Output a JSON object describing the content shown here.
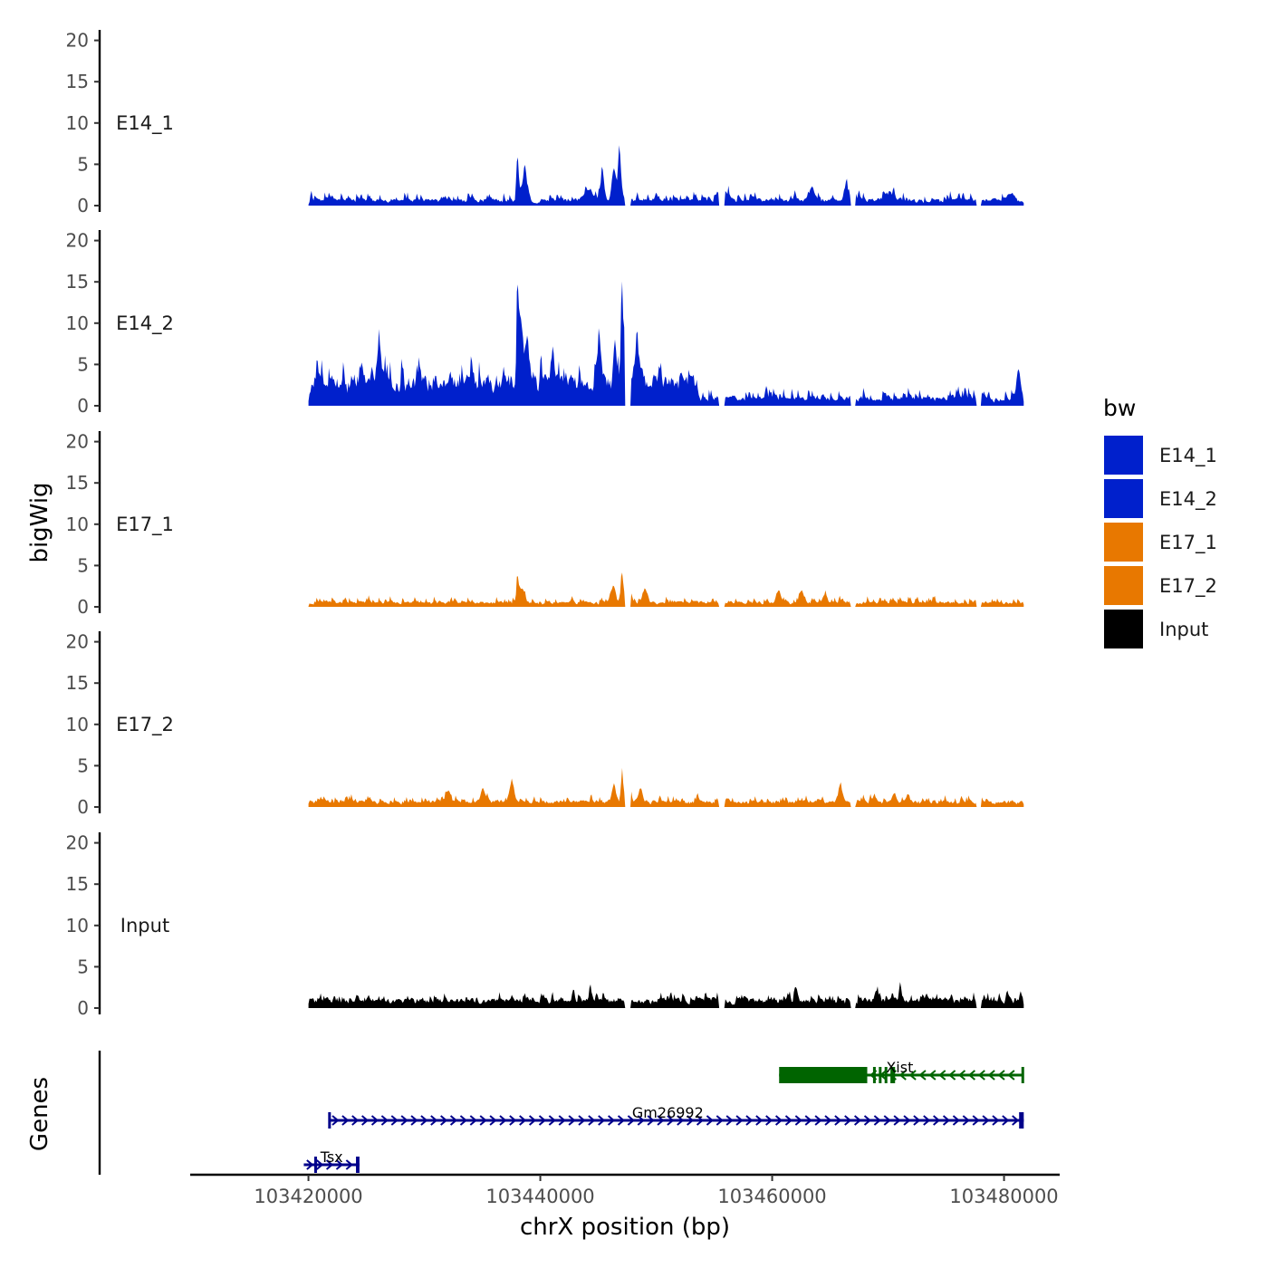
{
  "chart_data": {
    "type": "area",
    "title": "",
    "xlabel": "chrX position (bp)",
    "ylabel": "bigWig",
    "genes_label": "Genes",
    "xlim": [
      103409800,
      103484800
    ],
    "ylim": [
      0,
      21
    ],
    "x_ticks": [
      103420000,
      103440000,
      103460000,
      103480000
    ],
    "x_tick_labels": [
      "103420000",
      "103440000",
      "103460000",
      "103480000"
    ],
    "y_ticks": [
      0,
      5,
      10,
      15,
      20
    ],
    "y_tick_labels": [
      "0",
      "5",
      "10",
      "15",
      "20"
    ],
    "data_x_range": [
      103420000,
      103481700
    ],
    "gaps": [
      [
        103447300,
        103447800
      ],
      [
        103455400,
        103455900
      ],
      [
        103466800,
        103467200
      ],
      [
        103477600,
        103478000
      ]
    ],
    "legend": {
      "title": "bw",
      "entries": [
        {
          "name": "E14_1",
          "color": "#0020CC"
        },
        {
          "name": "E14_2",
          "color": "#0020CC"
        },
        {
          "name": "E17_1",
          "color": "#E87800"
        },
        {
          "name": "E17_2",
          "color": "#E87800"
        },
        {
          "name": "Input",
          "color": "#000000"
        }
      ]
    },
    "series": [
      {
        "name": "E14_1",
        "color": "#0020CC",
        "baseline": 0.6,
        "noise": 1.3,
        "seed": 11,
        "peaks": [
          [
            103438000,
            7.8,
            110
          ],
          [
            103438600,
            4.5,
            220
          ],
          [
            103445300,
            5.0,
            180
          ],
          [
            103446800,
            7.7,
            150
          ],
          [
            103446300,
            5.5,
            220
          ],
          [
            103444000,
            1.5,
            400
          ],
          [
            103456000,
            1.2,
            300
          ],
          [
            103463400,
            2.0,
            250
          ],
          [
            103466300,
            2.3,
            200
          ],
          [
            103470000,
            1.0,
            350
          ],
          [
            103480500,
            1.0,
            300
          ]
        ]
      },
      {
        "name": "E14_2",
        "color": "#0020CC",
        "baseline": 3.0,
        "noise": 3.6,
        "seed": 23,
        "decay_after": 103453500,
        "post_baseline": 0.9,
        "post_noise": 1.6,
        "peaks": [
          [
            103438000,
            13.0,
            110
          ],
          [
            103438300,
            8.0,
            220
          ],
          [
            103438800,
            6.0,
            200
          ],
          [
            103446400,
            7.5,
            160
          ],
          [
            103447000,
            20.5,
            90
          ],
          [
            103447300,
            10.0,
            150
          ],
          [
            103448300,
            8.0,
            180
          ],
          [
            103445000,
            7.0,
            200
          ],
          [
            103441000,
            5.5,
            200
          ],
          [
            103426000,
            7.5,
            150
          ],
          [
            103481200,
            4.8,
            200
          ]
        ]
      },
      {
        "name": "E17_1",
        "color": "#E87800",
        "baseline": 0.5,
        "noise": 0.9,
        "seed": 37,
        "peaks": [
          [
            103438000,
            5.3,
            110
          ],
          [
            103438400,
            2.0,
            240
          ],
          [
            103446200,
            2.5,
            260
          ],
          [
            103447000,
            5.2,
            140
          ],
          [
            103447600,
            3.5,
            160
          ],
          [
            103449000,
            2.0,
            250
          ],
          [
            103460500,
            2.0,
            220
          ],
          [
            103462500,
            1.6,
            220
          ],
          [
            103464500,
            1.5,
            200
          ]
        ]
      },
      {
        "name": "E17_2",
        "color": "#E87800",
        "baseline": 0.6,
        "noise": 1.0,
        "seed": 51,
        "peaks": [
          [
            103437500,
            3.3,
            160
          ],
          [
            103435000,
            2.0,
            250
          ],
          [
            103446300,
            3.0,
            180
          ],
          [
            103447000,
            5.3,
            110
          ],
          [
            103447600,
            4.0,
            150
          ],
          [
            103448600,
            2.0,
            230
          ],
          [
            103465800,
            2.3,
            200
          ],
          [
            103470500,
            1.6,
            200
          ],
          [
            103432000,
            2.0,
            220
          ]
        ]
      },
      {
        "name": "Input",
        "color": "#000000",
        "baseline": 1.0,
        "noise": 1.1,
        "seed": 73,
        "peaks": [
          [
            103444300,
            2.7,
            120
          ],
          [
            103442800,
            1.8,
            150
          ],
          [
            103462000,
            2.3,
            140
          ],
          [
            103471000,
            2.3,
            140
          ],
          [
            103469000,
            1.6,
            160
          ]
        ]
      }
    ],
    "genes": [
      {
        "name": "Xist",
        "strand": "-",
        "color": "#006400",
        "row": 0,
        "start": 103460600,
        "end": 103481700,
        "label_x": 103471000,
        "exons": [
          [
            103460600,
            103468200
          ],
          [
            103468700,
            103468900
          ],
          [
            103469200,
            103469400
          ],
          [
            103469700,
            103469900
          ],
          [
            103470200,
            103470600
          ],
          [
            103481500,
            103481700
          ]
        ]
      },
      {
        "name": "Gm26992",
        "strand": "+",
        "color": "#00008B",
        "row": 1,
        "start": 103421800,
        "end": 103481700,
        "label_x": 103451000,
        "exons": [
          [
            103421700,
            103421800
          ],
          [
            103481300,
            103481700
          ]
        ]
      },
      {
        "name": "Tsx",
        "strand": "+",
        "color": "#00008B",
        "row": 2,
        "start": 103419600,
        "end": 103424400,
        "label_x": 103422000,
        "exons": [
          [
            103420500,
            103420600
          ],
          [
            103424100,
            103424400
          ]
        ]
      }
    ]
  }
}
